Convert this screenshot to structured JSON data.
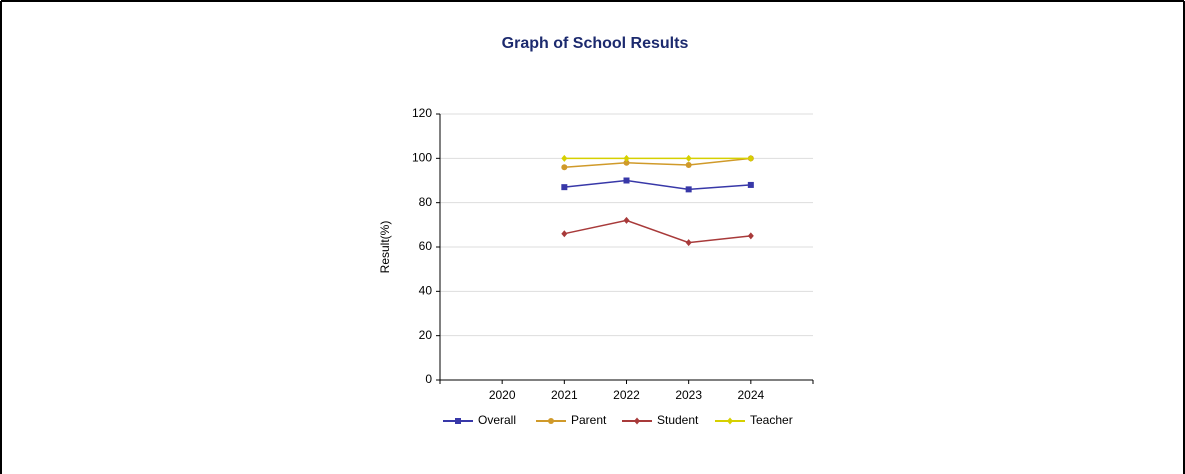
{
  "chart_data": {
    "type": "line",
    "title": "Graph of School Results",
    "y_label": "Result(%)",
    "x": [
      "2020",
      "2021",
      "2022",
      "2023",
      "2024"
    ],
    "series": [
      {
        "name": "Overall",
        "color": "#3838a8",
        "marker": "square",
        "values": [
          null,
          87,
          90,
          86,
          88
        ]
      },
      {
        "name": "Parent",
        "color": "#d09a2a",
        "marker": "circle",
        "values": [
          null,
          96,
          98,
          97,
          100
        ]
      },
      {
        "name": "Student",
        "color": "#a83a3a",
        "marker": "diamond",
        "values": [
          null,
          66,
          72,
          62,
          65
        ]
      },
      {
        "name": "Teacher",
        "color": "#d6d000",
        "marker": "diamond",
        "values": [
          null,
          100,
          100,
          100,
          100
        ]
      }
    ],
    "ylim": [
      0,
      120
    ],
    "yticks": [
      0,
      20,
      40,
      60,
      80,
      100,
      120
    ],
    "grid": true,
    "legend": "bottom"
  }
}
